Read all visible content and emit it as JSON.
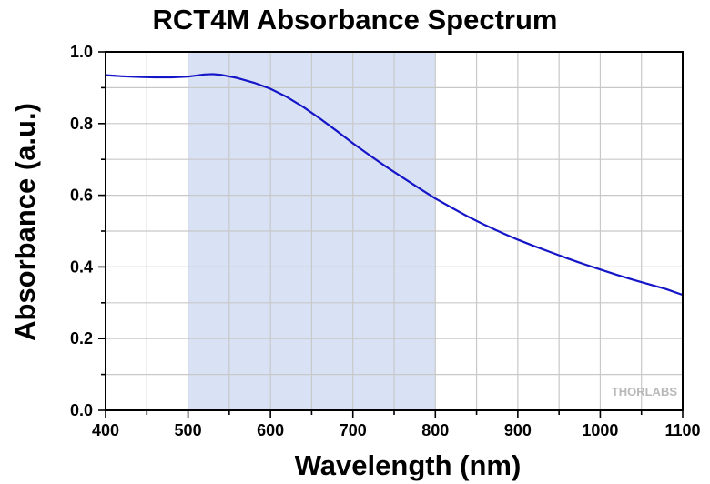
{
  "chart_data": {
    "type": "line",
    "title": "RCT4M Absorbance Spectrum",
    "xlabel": "Wavelength (nm)",
    "ylabel": "Absorbance (a.u.)",
    "xlim": [
      400,
      1100
    ],
    "ylim": [
      0.0,
      1.0
    ],
    "x_ticks": [
      400,
      500,
      600,
      700,
      800,
      900,
      1000,
      1100
    ],
    "y_ticks": [
      "0.0",
      "0.2",
      "0.4",
      "0.6",
      "0.8",
      "1.0"
    ],
    "grid": true,
    "highlight_band": {
      "x_range": [
        500,
        800
      ],
      "color": "#d9e2f5"
    },
    "series": [
      {
        "color": "#1515c8",
        "x": [
          400,
          420,
          440,
          460,
          480,
          500,
          520,
          530,
          540,
          560,
          580,
          600,
          620,
          640,
          660,
          680,
          700,
          720,
          740,
          760,
          780,
          800,
          820,
          840,
          860,
          880,
          900,
          920,
          940,
          960,
          980,
          1000,
          1020,
          1040,
          1060,
          1080,
          1100
        ],
        "y": [
          0.935,
          0.932,
          0.93,
          0.929,
          0.929,
          0.931,
          0.937,
          0.938,
          0.936,
          0.927,
          0.914,
          0.897,
          0.874,
          0.846,
          0.814,
          0.78,
          0.745,
          0.712,
          0.68,
          0.65,
          0.62,
          0.591,
          0.565,
          0.54,
          0.517,
          0.496,
          0.476,
          0.458,
          0.441,
          0.424,
          0.408,
          0.393,
          0.378,
          0.364,
          0.351,
          0.338,
          0.322
        ]
      }
    ]
  },
  "watermark": {
    "text": "THORLABS"
  }
}
